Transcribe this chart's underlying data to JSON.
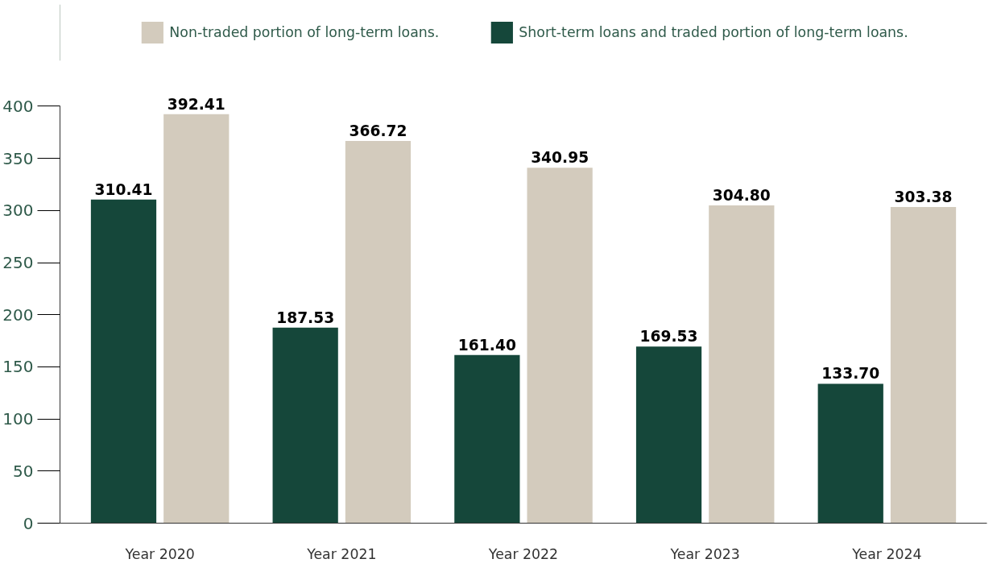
{
  "chart_data": {
    "type": "bar",
    "categories": [
      "Year 2020",
      "Year 2021",
      "Year 2022",
      "Year 2023",
      "Year 2024"
    ],
    "series": [
      {
        "name": "Short-term loans and traded portion of long-term loans.",
        "color": "#15473a",
        "values": [
          310.41,
          187.53,
          161.4,
          169.53,
          133.7
        ],
        "value_labels": [
          "310.41",
          "187.53",
          "161.40",
          "169.53",
          "133.70"
        ]
      },
      {
        "name": "Non-traded portion of long-term loans.",
        "color": "#d3cbbd",
        "values": [
          392.41,
          366.72,
          340.95,
          304.8,
          303.38
        ],
        "value_labels": [
          "392.41",
          "366.72",
          "340.95",
          "304.80",
          "303.38"
        ]
      }
    ],
    "ylim": [
      0,
      400
    ],
    "yticks": [
      0,
      50,
      100,
      150,
      200,
      250,
      300,
      350,
      400
    ],
    "grid": false,
    "legend": "top"
  }
}
